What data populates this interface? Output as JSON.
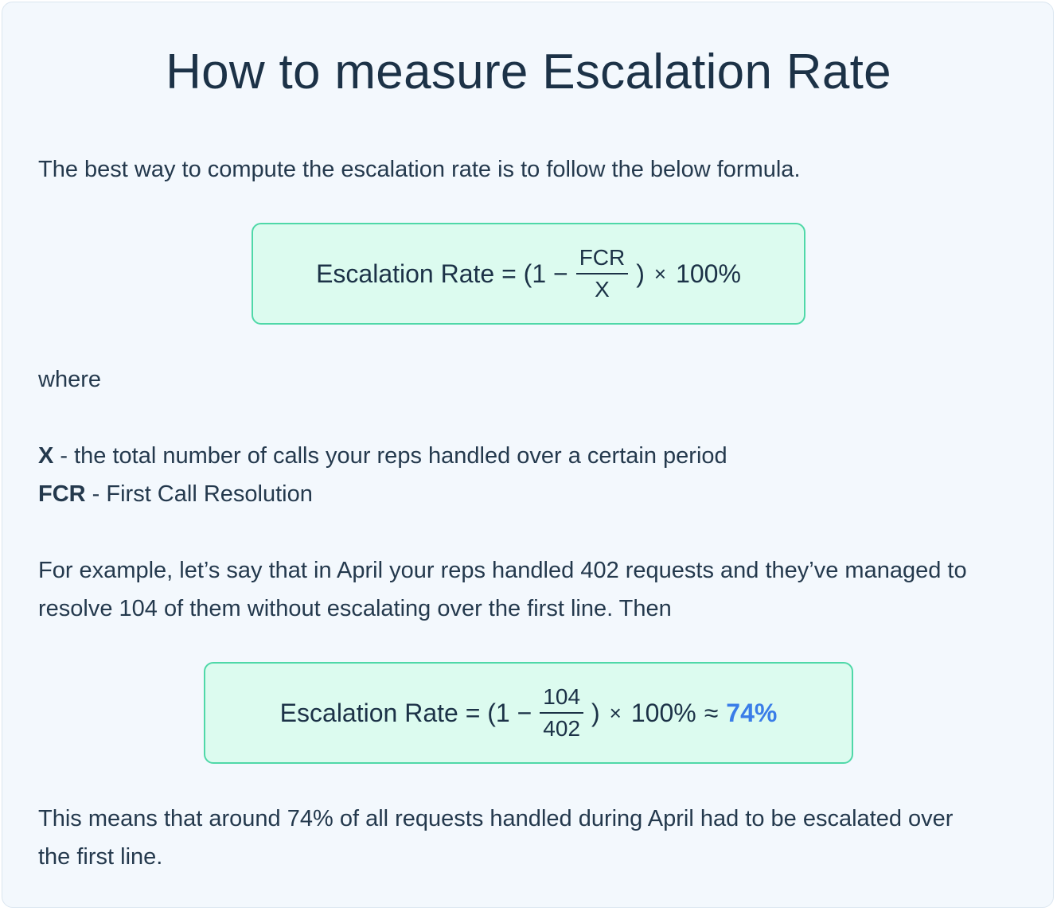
{
  "title": "How to measure Escalation Rate",
  "intro": "The best way to compute the escalation rate is to follow the below formula.",
  "formula": {
    "lhs": "Escalation Rate = (1 −",
    "numerator": "FCR",
    "denominator": "X",
    "close": ")",
    "times": "×",
    "multiplier": "100%"
  },
  "where_label": "where",
  "definitions": [
    {
      "term": "X",
      "text": " - the total number of calls your reps handled over a certain period"
    },
    {
      "term": "FCR",
      "text": " - First Call Resolution"
    }
  ],
  "example_text": "For example, let’s say that in April your reps handled 402 requests and they’ve managed to resolve 104 of them without escalating over the first line. Then",
  "example_formula": {
    "lhs": "Escalation Rate = (1 −",
    "numerator": "104",
    "denominator": "402",
    "close": ")",
    "times": "×",
    "multiplier": "100%",
    "approx": "≈",
    "result": "74%"
  },
  "conclusion": "This means that around 74% of all requests handled during April had to be escalated over the first line.",
  "colors": {
    "background": "#f3f8fd",
    "formula_box_fill": "#dcfbef",
    "formula_box_border": "#4fd8a8",
    "result_accent": "#3a7de8",
    "text": "#1c3247"
  }
}
